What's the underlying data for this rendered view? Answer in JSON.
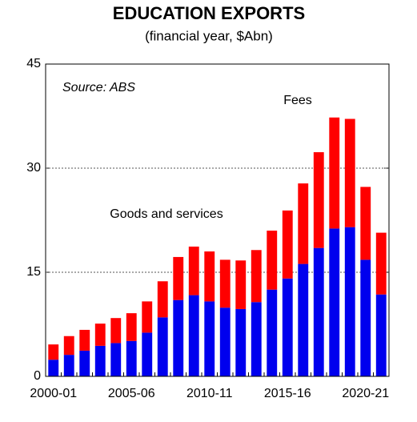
{
  "chart_data": {
    "type": "bar",
    "stacked": true,
    "title": "EDUCATION EXPORTS",
    "subtitle": "(financial year, $Abn)",
    "annotation": "Source: ABS",
    "categories": [
      "2000-01",
      null,
      null,
      null,
      null,
      "2005-06",
      null,
      null,
      null,
      null,
      "2010-11",
      null,
      null,
      null,
      null,
      "2015-16",
      null,
      null,
      null,
      null,
      "2020-21",
      null
    ],
    "series": [
      {
        "name": "Goods and services",
        "color": "#0000ee",
        "values": [
          2.4,
          3.1,
          3.7,
          4.4,
          4.8,
          5.1,
          6.3,
          8.5,
          11.0,
          11.7,
          10.8,
          9.9,
          9.7,
          10.7,
          12.5,
          14.1,
          16.2,
          18.5,
          21.3,
          21.5,
          16.8,
          11.8
        ]
      },
      {
        "name": "Fees",
        "color": "#ff0000",
        "values": [
          2.2,
          2.7,
          3.0,
          3.2,
          3.6,
          4.0,
          4.5,
          5.2,
          6.2,
          7.0,
          7.2,
          6.9,
          7.0,
          7.5,
          8.5,
          9.8,
          11.6,
          13.8,
          16.0,
          15.6,
          10.5,
          8.9
        ]
      }
    ],
    "ylim": [
      0,
      45
    ],
    "yticks": [
      0,
      15,
      30,
      45
    ],
    "grid": true
  }
}
